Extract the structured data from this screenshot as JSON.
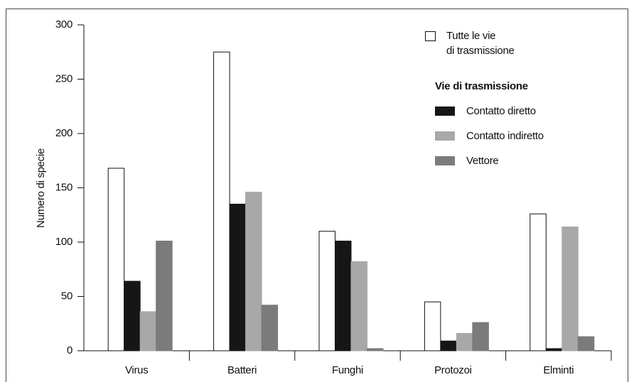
{
  "chart_data": {
    "type": "bar",
    "y_label": "Numero di specie",
    "categories": [
      "Virus",
      "Batteri",
      "Funghi",
      "Protozoi",
      "Elminti"
    ],
    "series": [
      {
        "name": "Tutte le vie\ndi trasmissione",
        "color": "#ffffff",
        "values": [
          168,
          275,
          110,
          45,
          126
        ]
      },
      {
        "name": "Contatto diretto",
        "color": "#161616",
        "values": [
          64,
          135,
          101,
          9,
          2
        ]
      },
      {
        "name": "Contatto indiretto",
        "color": "#a8a8a8",
        "values": [
          36,
          146,
          82,
          16,
          114
        ]
      },
      {
        "name": "Vettore",
        "color": "#7b7b7b",
        "values": [
          101,
          42,
          2,
          26,
          13
        ]
      }
    ],
    "legend_title": "Vie di trasmissione",
    "ylim": [
      0,
      300
    ],
    "yticks": [
      0,
      50,
      100,
      150,
      200,
      250,
      300
    ],
    "grid": false
  }
}
